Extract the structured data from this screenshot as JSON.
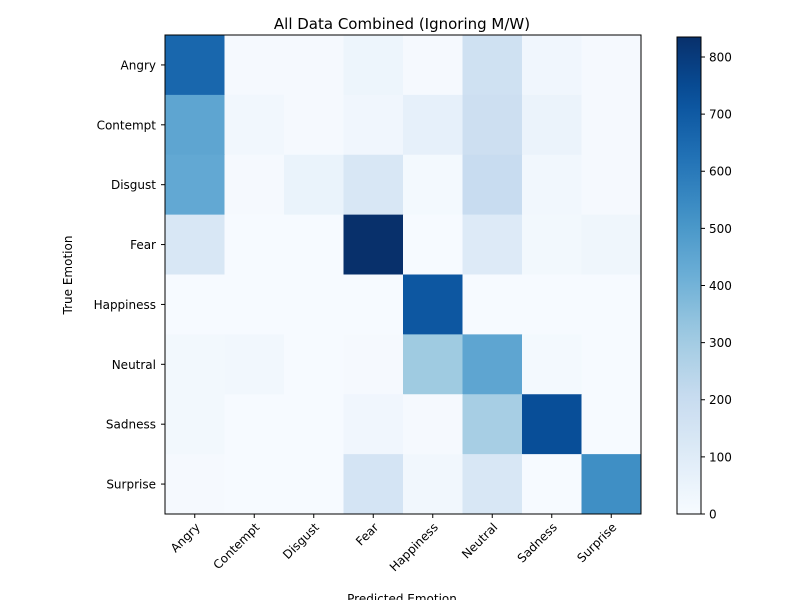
{
  "chart_data": {
    "type": "heatmap",
    "title": "All Data Combined (Ignoring M/W)",
    "xlabel": "Predicted Emotion",
    "ylabel": "True Emotion",
    "x_categories": [
      "Angry",
      "Contempt",
      "Disgust",
      "Fear",
      "Happiness",
      "Neutral",
      "Sadness",
      "Surprise"
    ],
    "y_categories": [
      "Angry",
      "Contempt",
      "Disgust",
      "Fear",
      "Happiness",
      "Neutral",
      "Sadness",
      "Surprise"
    ],
    "values": [
      [
        660,
        10,
        10,
        40,
        10,
        170,
        30,
        10
      ],
      [
        450,
        25,
        10,
        30,
        70,
        180,
        50,
        10
      ],
      [
        440,
        10,
        55,
        130,
        15,
        200,
        25,
        10
      ],
      [
        130,
        5,
        5,
        835,
        5,
        110,
        20,
        35
      ],
      [
        5,
        5,
        5,
        5,
        710,
        5,
        5,
        5
      ],
      [
        20,
        25,
        5,
        10,
        310,
        450,
        15,
        5
      ],
      [
        20,
        5,
        5,
        30,
        10,
        290,
        740,
        5
      ],
      [
        10,
        5,
        5,
        150,
        25,
        130,
        5,
        530
      ]
    ],
    "colormap": "Blues",
    "colorbar": {
      "min": 0,
      "max": 835,
      "ticks": [
        0,
        100,
        200,
        300,
        400,
        500,
        600,
        700,
        800
      ]
    }
  }
}
